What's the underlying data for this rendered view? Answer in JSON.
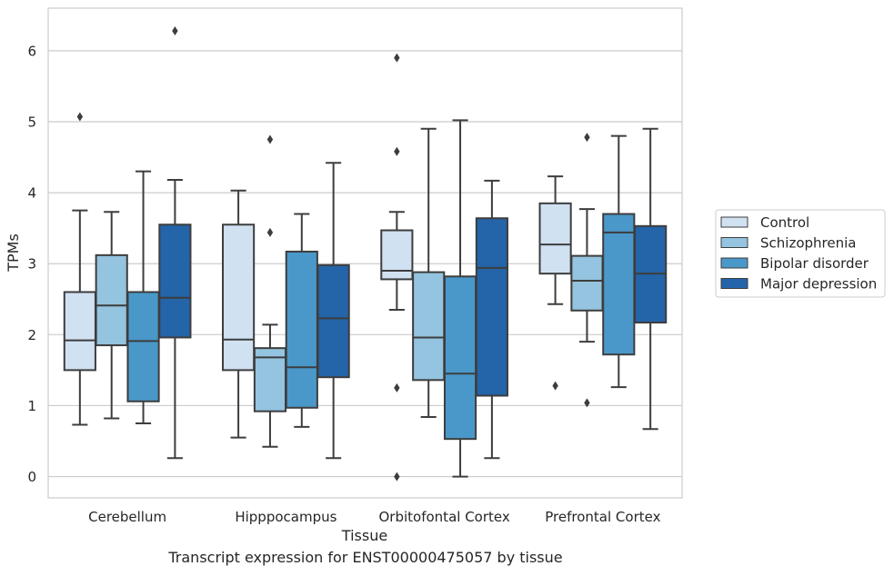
{
  "chart_data": {
    "type": "box",
    "xlabel": "Tissue",
    "ylabel": "TPMs",
    "ylim": [
      -0.3,
      6.6
    ],
    "yticks": [
      0,
      1,
      2,
      3,
      4,
      5,
      6
    ],
    "grid": "horizontal",
    "legend_position": "right",
    "categories": [
      "Cerebellum",
      "Hipppocampus",
      "Orbitofontal Cortex",
      "Prefrontal Cortex"
    ],
    "series": [
      {
        "name": "Control",
        "color": "#d0e1f2",
        "boxes": [
          {
            "whisker_low": 0.73,
            "q1": 1.5,
            "median": 1.92,
            "q3": 2.6,
            "whisker_high": 3.75,
            "outliers": [
              5.07
            ]
          },
          {
            "whisker_low": 0.55,
            "q1": 1.5,
            "median": 1.93,
            "q3": 3.55,
            "whisker_high": 4.03,
            "outliers": []
          },
          {
            "whisker_low": 2.35,
            "q1": 2.78,
            "median": 2.9,
            "q3": 3.47,
            "whisker_high": 3.73,
            "outliers": [
              5.9,
              4.58,
              1.25,
              0.0
            ]
          },
          {
            "whisker_low": 2.43,
            "q1": 2.86,
            "median": 3.27,
            "q3": 3.85,
            "whisker_high": 4.23,
            "outliers": [
              1.28
            ]
          }
        ]
      },
      {
        "name": "Schizophrenia",
        "color": "#94c4df",
        "boxes": [
          {
            "whisker_low": 0.82,
            "q1": 1.85,
            "median": 2.41,
            "q3": 3.12,
            "whisker_high": 3.73,
            "outliers": []
          },
          {
            "whisker_low": 0.42,
            "q1": 0.92,
            "median": 1.68,
            "q3": 1.81,
            "whisker_high": 2.14,
            "outliers": [
              4.75,
              3.44
            ]
          },
          {
            "whisker_low": 0.84,
            "q1": 1.36,
            "median": 1.96,
            "q3": 2.88,
            "whisker_high": 4.9,
            "outliers": []
          },
          {
            "whisker_low": 1.9,
            "q1": 2.34,
            "median": 2.76,
            "q3": 3.11,
            "whisker_high": 3.77,
            "outliers": [
              4.78,
              1.04
            ]
          }
        ]
      },
      {
        "name": "Bipolar disorder",
        "color": "#4a98c9",
        "boxes": [
          {
            "whisker_low": 0.75,
            "q1": 1.06,
            "median": 1.91,
            "q3": 2.6,
            "whisker_high": 4.3,
            "outliers": []
          },
          {
            "whisker_low": 0.7,
            "q1": 0.97,
            "median": 1.54,
            "q3": 3.17,
            "whisker_high": 3.7,
            "outliers": []
          },
          {
            "whisker_low": 0.0,
            "q1": 0.53,
            "median": 1.45,
            "q3": 2.82,
            "whisker_high": 5.02,
            "outliers": []
          },
          {
            "whisker_low": 1.26,
            "q1": 1.72,
            "median": 3.44,
            "q3": 3.7,
            "whisker_high": 4.8,
            "outliers": []
          }
        ]
      },
      {
        "name": "Major depression",
        "color": "#2464a8",
        "boxes": [
          {
            "whisker_low": 0.26,
            "q1": 1.96,
            "median": 2.52,
            "q3": 3.55,
            "whisker_high": 4.18,
            "outliers": [
              6.28
            ]
          },
          {
            "whisker_low": 0.26,
            "q1": 1.4,
            "median": 2.23,
            "q3": 2.98,
            "whisker_high": 4.42,
            "outliers": []
          },
          {
            "whisker_low": 0.26,
            "q1": 1.14,
            "median": 2.94,
            "q3": 3.64,
            "whisker_high": 4.17,
            "outliers": []
          },
          {
            "whisker_low": 0.67,
            "q1": 2.17,
            "median": 2.86,
            "q3": 3.53,
            "whisker_high": 4.9,
            "outliers": []
          }
        ]
      }
    ]
  },
  "caption": "Transcript expression for ENST00000475057 by tissue"
}
